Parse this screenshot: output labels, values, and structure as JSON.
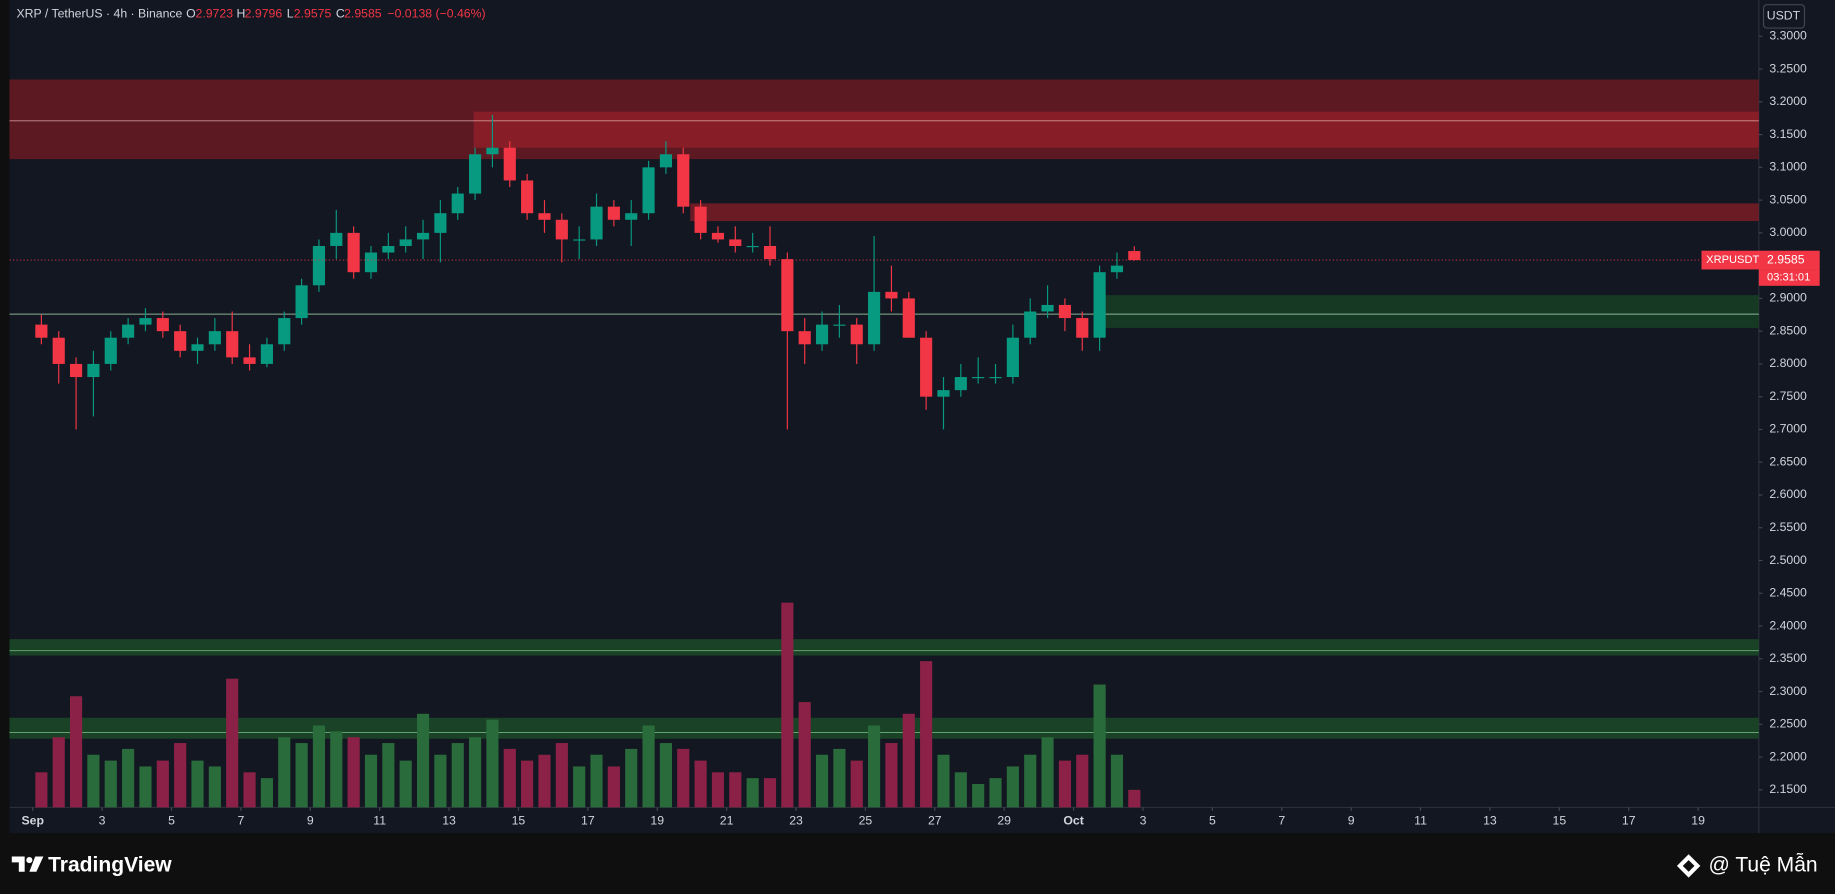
{
  "chart_data": {
    "type": "candlestick",
    "title": "XRP / TetherUS · 4h · Binance",
    "ohlc_labels": {
      "open": "O",
      "high": "H",
      "low": "L",
      "close": "C"
    },
    "header": {
      "open": 2.9723,
      "high": 2.9796,
      "low": 2.9575,
      "close": 2.9585,
      "change": "−0.0138 (−0.46%)"
    },
    "symbol": "XRPUSDT",
    "currency": "USDT",
    "countdown": "03:31:01",
    "up_color": "#089981",
    "down_color": "#f23645",
    "volume_up_color": "#2a6b3b",
    "volume_down_color": "#8c2147",
    "grid": false,
    "x": [
      0,
      0.5,
      1,
      1.5,
      2,
      2.5,
      3,
      3.5,
      4,
      4.5,
      5,
      5.5,
      6,
      6.5,
      7,
      7.5,
      8,
      8.5,
      9,
      9.5,
      10,
      10.5,
      11,
      11.5,
      12,
      12.5,
      13,
      13.5,
      14,
      14.5,
      15,
      15.5,
      16,
      16.5,
      17,
      17.5,
      18,
      18.5,
      19,
      19.5,
      20,
      20.5,
      21,
      21.5,
      22,
      22.5,
      23,
      23.5,
      24,
      24.5,
      25,
      25.5,
      26,
      26.5,
      27,
      27.5,
      28,
      28.5,
      29,
      29.5,
      30,
      30.5,
      31,
      31.5
    ],
    "open": [
      2.86,
      2.84,
      2.8,
      2.78,
      2.8,
      2.84,
      2.86,
      2.87,
      2.85,
      2.82,
      2.83,
      2.85,
      2.81,
      2.8,
      2.83,
      2.87,
      2.92,
      2.98,
      3.0,
      2.94,
      2.97,
      2.98,
      2.99,
      3.0,
      3.03,
      3.06,
      3.12,
      3.13,
      3.08,
      3.03,
      3.02,
      2.99,
      2.99,
      3.04,
      3.02,
      3.03,
      3.1,
      3.12,
      3.04,
      3.0,
      2.99,
      2.98,
      2.98,
      2.96,
      2.85,
      2.83,
      2.86,
      2.86,
      2.83,
      2.91,
      2.9,
      2.84,
      2.75,
      2.76,
      2.78,
      2.78,
      2.78,
      2.84,
      2.88,
      2.89,
      2.87,
      2.84,
      2.94,
      2.9723
    ],
    "high": [
      2.875,
      2.85,
      2.81,
      2.82,
      2.85,
      2.87,
      2.885,
      2.88,
      2.86,
      2.84,
      2.87,
      2.88,
      2.83,
      2.84,
      2.88,
      2.93,
      2.99,
      3.035,
      3.01,
      2.98,
      3.0,
      3.01,
      3.02,
      3.05,
      3.07,
      3.13,
      3.18,
      3.14,
      3.09,
      3.05,
      3.03,
      3.01,
      3.06,
      3.05,
      3.05,
      3.11,
      3.14,
      3.13,
      3.05,
      3.01,
      3.01,
      3.0,
      3.01,
      2.97,
      2.87,
      2.88,
      2.89,
      2.87,
      2.995,
      2.95,
      2.91,
      2.85,
      2.78,
      2.8,
      2.81,
      2.8,
      2.86,
      2.9,
      2.92,
      2.9,
      2.88,
      2.95,
      2.97,
      2.9796
    ],
    "low": [
      2.83,
      2.77,
      2.7,
      2.72,
      2.79,
      2.83,
      2.85,
      2.84,
      2.81,
      2.8,
      2.82,
      2.8,
      2.79,
      2.795,
      2.82,
      2.86,
      2.91,
      2.96,
      2.93,
      2.93,
      2.96,
      2.97,
      2.96,
      2.955,
      3.02,
      3.05,
      3.1,
      3.07,
      3.02,
      3.0,
      2.955,
      2.96,
      2.98,
      3.01,
      2.98,
      3.02,
      3.09,
      3.03,
      2.99,
      2.985,
      2.97,
      2.97,
      2.95,
      2.7,
      2.8,
      2.82,
      2.84,
      2.8,
      2.82,
      2.88,
      2.84,
      2.73,
      2.7,
      2.75,
      2.77,
      2.77,
      2.77,
      2.83,
      2.87,
      2.85,
      2.82,
      2.82,
      2.93,
      2.9575
    ],
    "close": [
      2.84,
      2.8,
      2.78,
      2.8,
      2.84,
      2.86,
      2.87,
      2.85,
      2.82,
      2.83,
      2.85,
      2.81,
      2.8,
      2.83,
      2.87,
      2.92,
      2.98,
      3.0,
      2.94,
      2.97,
      2.98,
      2.99,
      3.0,
      3.03,
      3.06,
      3.12,
      3.13,
      3.08,
      3.03,
      3.02,
      2.99,
      2.99,
      3.04,
      3.02,
      3.03,
      3.1,
      3.12,
      3.04,
      3.0,
      2.99,
      2.98,
      2.98,
      2.96,
      2.85,
      2.83,
      2.86,
      2.86,
      2.83,
      2.91,
      2.9,
      2.84,
      2.75,
      2.76,
      2.78,
      2.78,
      2.78,
      2.84,
      2.88,
      2.89,
      2.87,
      2.84,
      2.94,
      2.95,
      2.9585
    ],
    "volume": [
      30,
      60,
      95,
      45,
      40,
      50,
      35,
      40,
      55,
      40,
      35,
      110,
      30,
      25,
      60,
      55,
      70,
      65,
      60,
      45,
      55,
      40,
      80,
      45,
      55,
      60,
      75,
      50,
      40,
      45,
      55,
      35,
      45,
      35,
      50,
      70,
      55,
      50,
      40,
      30,
      30,
      25,
      25,
      175,
      90,
      45,
      50,
      40,
      70,
      55,
      80,
      125,
      45,
      30,
      20,
      25,
      35,
      45,
      60,
      40,
      45,
      105,
      45,
      15
    ],
    "zones": [
      {
        "low": 3.1125,
        "high": 3.234,
        "color": "#6b1a22"
      },
      {
        "low": 3.13,
        "high": 3.185,
        "start": 12.71,
        "color": "#8e1f27"
      },
      {
        "low": 3.018,
        "high": 3.045,
        "start": 18.95,
        "color": "#7a1c24"
      },
      {
        "low": 2.855,
        "high": 2.905,
        "start": 30.76,
        "color": "#173f24"
      },
      {
        "low": 2.355,
        "high": 2.38,
        "color": "#1b4a27"
      },
      {
        "low": 2.228,
        "high": 2.26,
        "color": "#1b4a27"
      }
    ],
    "levels": [
      {
        "value": 3.171,
        "color": "#e8b0b0"
      },
      {
        "value": 2.876,
        "color": "#a8d8b0"
      },
      {
        "value": 2.3625,
        "color": "#6fbf7f"
      },
      {
        "value": 2.2375,
        "color": "#6fbf7f"
      }
    ],
    "xlim": [
      -0.67,
      49.75
    ],
    "xticks": [
      {
        "value": 0,
        "label": "Sep"
      },
      {
        "value": 2,
        "label": "3"
      },
      {
        "value": 4,
        "label": "5"
      },
      {
        "value": 6,
        "label": "7"
      },
      {
        "value": 8,
        "label": "9"
      },
      {
        "value": 10,
        "label": "11"
      },
      {
        "value": 12,
        "label": "13"
      },
      {
        "value": 14,
        "label": "15"
      },
      {
        "value": 16,
        "label": "17"
      },
      {
        "value": 18,
        "label": "19"
      },
      {
        "value": 20,
        "label": "21"
      },
      {
        "value": 22,
        "label": "23"
      },
      {
        "value": 24,
        "label": "25"
      },
      {
        "value": 26,
        "label": "27"
      },
      {
        "value": 28,
        "label": "29"
      },
      {
        "value": 30,
        "label": "Oct"
      },
      {
        "value": 32,
        "label": "3"
      },
      {
        "value": 34,
        "label": "5"
      },
      {
        "value": 36,
        "label": "7"
      },
      {
        "value": 38,
        "label": "9"
      },
      {
        "value": 40,
        "label": "11"
      },
      {
        "value": 42,
        "label": "13"
      },
      {
        "value": 44,
        "label": "15"
      },
      {
        "value": 46,
        "label": "17"
      },
      {
        "value": 48,
        "label": "19"
      }
    ],
    "ylim": [
      2.1232,
      3.3554
    ],
    "yticks": [
      {
        "value": 3.3,
        "label": "3.3000"
      },
      {
        "value": 3.25,
        "label": "3.2500"
      },
      {
        "value": 3.2,
        "label": "3.2000"
      },
      {
        "value": 3.15,
        "label": "3.1500"
      },
      {
        "value": 3.1,
        "label": "3.1000"
      },
      {
        "value": 3.05,
        "label": "3.0500"
      },
      {
        "value": 3.0,
        "label": "3.0000"
      },
      {
        "value": 2.9,
        "label": "2.9000"
      },
      {
        "value": 2.85,
        "label": "2.8500"
      },
      {
        "value": 2.8,
        "label": "2.8000"
      },
      {
        "value": 2.75,
        "label": "2.7500"
      },
      {
        "value": 2.7,
        "label": "2.7000"
      },
      {
        "value": 2.65,
        "label": "2.6500"
      },
      {
        "value": 2.6,
        "label": "2.6000"
      },
      {
        "value": 2.55,
        "label": "2.5500"
      },
      {
        "value": 2.5,
        "label": "2.5000"
      },
      {
        "value": 2.45,
        "label": "2.4500"
      },
      {
        "value": 2.4,
        "label": "2.4000"
      },
      {
        "value": 2.35,
        "label": "2.3500"
      },
      {
        "value": 2.3,
        "label": "2.3000"
      },
      {
        "value": 2.25,
        "label": "2.2500"
      },
      {
        "value": 2.2,
        "label": "2.2000"
      },
      {
        "value": 2.15,
        "label": "2.1500"
      }
    ]
  },
  "footer": {
    "brand": "TradingView",
    "author": "@ Tuệ Mẫn"
  }
}
